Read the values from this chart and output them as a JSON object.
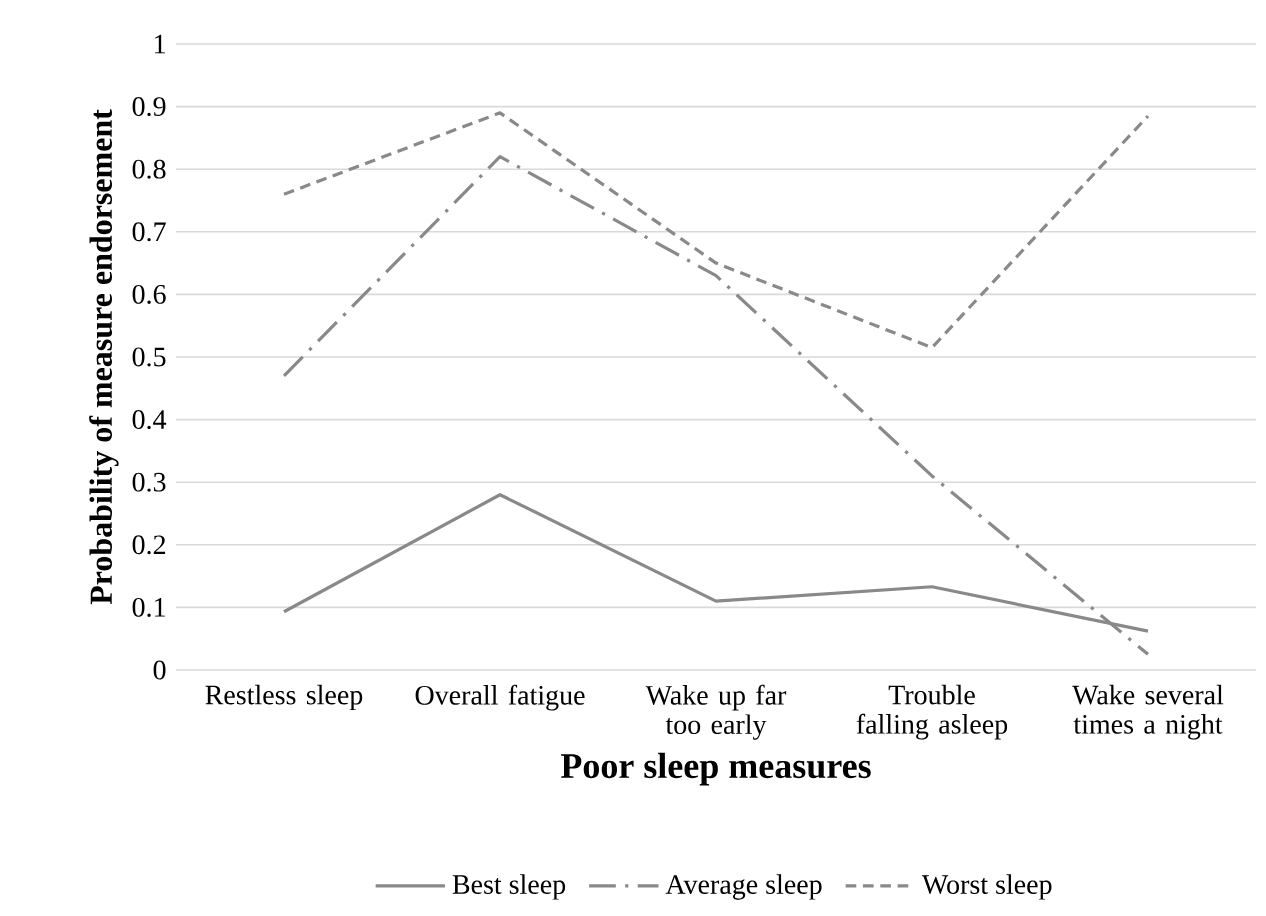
{
  "chart_data": {
    "type": "line",
    "xlabel": "Poor sleep measures",
    "ylabel": "Probability of measure endorsement",
    "categories": [
      "Restless sleep",
      "Overall fatigue",
      "Wake up far too early",
      "Trouble falling asleep",
      "Wake several times a night"
    ],
    "series": [
      {
        "name": "Best sleep",
        "color": "#898989",
        "line_style": "solid",
        "values": [
          0.093,
          0.28,
          0.11,
          0.133,
          0.062
        ]
      },
      {
        "name": "Average sleep",
        "color": "#898989",
        "line_style": "dashdot",
        "values": [
          0.47,
          0.82,
          0.63,
          0.31,
          0.025
        ]
      },
      {
        "name": "Worst sleep",
        "color": "#898989",
        "line_style": "dashed",
        "values": [
          0.76,
          0.89,
          0.65,
          0.515,
          0.885
        ]
      }
    ],
    "ylim": [
      0,
      1
    ],
    "yticks": [
      0,
      0.1,
      0.2,
      0.3,
      0.4,
      0.5,
      0.6,
      0.7,
      0.8,
      0.9,
      1
    ],
    "grid": "y",
    "legend": "bottom"
  }
}
